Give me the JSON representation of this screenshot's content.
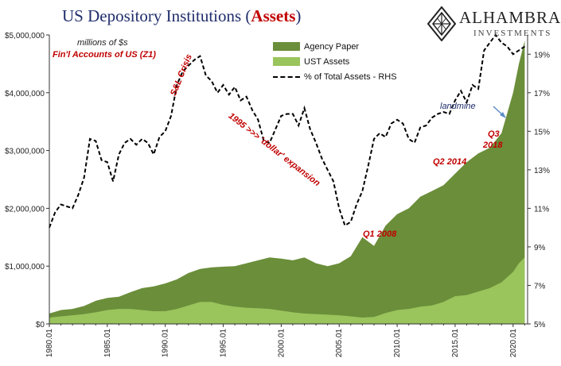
{
  "title": {
    "prefix": "US Depository Institutions (",
    "highlight": "Assets",
    "suffix": ")"
  },
  "logo": {
    "name": "ALHAMBRA",
    "sub": "INVESTMENTS"
  },
  "notes": {
    "units": "millions of $s",
    "source": "Fin'l Accounts of US (Z1)"
  },
  "annotations": [
    {
      "id": "sl-crisis",
      "text": "S&L Crisis",
      "style": "red"
    },
    {
      "id": "dollar-expansion",
      "text": "1995 >>> 'dollar' expansion",
      "style": "red"
    },
    {
      "id": "q1-2008",
      "text": "Q1 2008",
      "style": "red"
    },
    {
      "id": "q2-2014",
      "text": "Q2 2014",
      "style": "red"
    },
    {
      "id": "q3",
      "text": "Q3",
      "style": "red"
    },
    {
      "id": "y2018",
      "text": "2018",
      "style": "red"
    },
    {
      "id": "landmine",
      "text": "landmine",
      "style": "dark"
    }
  ],
  "colors": {
    "agency": "#6b8e3a",
    "ust": "#9ac45c",
    "pct": "#000000",
    "axis": "#333333"
  },
  "chart_data": {
    "type": "area",
    "x_tick_labels": [
      "1980.01",
      "1985.01",
      "1990.01",
      "1995.01",
      "2000.01",
      "2005.01",
      "2010.01",
      "2015.01",
      "2020.01"
    ],
    "x_ticks": [
      1980,
      1985,
      1990,
      1995,
      2000,
      2005,
      2010,
      2015,
      2020
    ],
    "xlim": [
      1980,
      2021.25
    ],
    "y_left_tick_labels": [
      "$0",
      "$1,000,000",
      "$2,000,000",
      "$3,000,000",
      "$4,000,000",
      "$5,000,000"
    ],
    "y_left_ticks": [
      0,
      1000000,
      2000000,
      3000000,
      4000000,
      5000000
    ],
    "ylim_left": [
      0,
      5000000
    ],
    "y_right_tick_labels": [
      "5%",
      "7%",
      "9%",
      "11%",
      "13%",
      "15%",
      "17%",
      "19%"
    ],
    "y_right_ticks": [
      5,
      7,
      9,
      11,
      13,
      15,
      17,
      19
    ],
    "ylim_right": [
      5,
      20
    ],
    "series": [
      {
        "name": "Agency Paper",
        "kind": "area",
        "stack": "total",
        "x": [
          1980,
          1981,
          1982,
          1983,
          1984,
          1985,
          1986,
          1987,
          1988,
          1989,
          1990,
          1991,
          1992,
          1993,
          1994,
          1995,
          1996,
          1997,
          1998,
          1999,
          2000,
          2001,
          2002,
          2003,
          2004,
          2005,
          2006,
          2007,
          2008,
          2009,
          2010,
          2011,
          2012,
          2013,
          2014,
          2015,
          2016,
          2017,
          2018,
          2019,
          2020,
          2020.5,
          2021
        ],
        "values": [
          180000,
          240000,
          260000,
          310000,
          400000,
          450000,
          470000,
          550000,
          620000,
          650000,
          700000,
          770000,
          880000,
          950000,
          980000,
          990000,
          1000000,
          1050000,
          1100000,
          1150000,
          1130000,
          1100000,
          1150000,
          1050000,
          1000000,
          1050000,
          1170000,
          1500000,
          1350000,
          1700000,
          1900000,
          2000000,
          2200000,
          2300000,
          2400000,
          2600000,
          2800000,
          2950000,
          3050000,
          3300000,
          4000000,
          4500000,
          4900000
        ]
      },
      {
        "name": "UST Assets",
        "kind": "area",
        "stack": "inner",
        "x": [
          1980,
          1981,
          1982,
          1983,
          1984,
          1985,
          1986,
          1987,
          1988,
          1989,
          1990,
          1991,
          1992,
          1993,
          1994,
          1995,
          1996,
          1997,
          1998,
          1999,
          2000,
          2001,
          2002,
          2003,
          2004,
          2005,
          2006,
          2007,
          2008,
          2009,
          2010,
          2011,
          2012,
          2013,
          2014,
          2015,
          2016,
          2017,
          2018,
          2019,
          2020,
          2020.5,
          2021
        ],
        "values": [
          110000,
          130000,
          150000,
          170000,
          200000,
          240000,
          260000,
          260000,
          240000,
          220000,
          220000,
          260000,
          320000,
          380000,
          380000,
          330000,
          300000,
          280000,
          270000,
          260000,
          230000,
          200000,
          180000,
          170000,
          160000,
          150000,
          130000,
          110000,
          120000,
          190000,
          240000,
          260000,
          300000,
          320000,
          380000,
          480000,
          500000,
          560000,
          620000,
          720000,
          900000,
          1050000,
          1150000
        ]
      },
      {
        "name": "% of Total Assets - RHS",
        "kind": "line",
        "axis": "right",
        "x": [
          1980,
          1980.5,
          1981,
          1982,
          1982.5,
          1983,
          1983.5,
          1984,
          1984.5,
          1985,
          1985.5,
          1986,
          1986.5,
          1987,
          1987.5,
          1988,
          1988.5,
          1989,
          1989.5,
          1990,
          1990.5,
          1991,
          1991.5,
          1992,
          1992.5,
          1993,
          1993.5,
          1994,
          1994.5,
          1995,
          1995.5,
          1996,
          1996.5,
          1997,
          1997.5,
          1998,
          1998.5,
          1999,
          1999.5,
          2000,
          2000.5,
          2001,
          2001.5,
          2002,
          2002.5,
          2003,
          2003.5,
          2004,
          2004.5,
          2005,
          2005.5,
          2006,
          2006.5,
          2007,
          2007.5,
          2008,
          2008.5,
          2009,
          2009.5,
          2010,
          2010.5,
          2011,
          2011.5,
          2012,
          2012.5,
          2013,
          2013.5,
          2014,
          2014.5,
          2015,
          2015.5,
          2016,
          2016.5,
          2017,
          2017.5,
          2018,
          2018.5,
          2019,
          2019.5,
          2020,
          2020.5,
          2021
        ],
        "values": [
          10.0,
          10.8,
          11.2,
          11.0,
          11.7,
          12.6,
          14.6,
          14.5,
          13.5,
          13.4,
          12.4,
          13.8,
          14.4,
          14.6,
          14.3,
          14.6,
          14.4,
          13.8,
          14.7,
          15.0,
          15.8,
          17.4,
          18.1,
          18.4,
          18.7,
          18.9,
          17.9,
          17.6,
          17.0,
          17.4,
          16.9,
          17.3,
          16.6,
          16.8,
          16.1,
          15.6,
          14.5,
          14.4,
          15.1,
          15.8,
          15.9,
          15.9,
          15.3,
          16.2,
          15.1,
          14.4,
          13.6,
          13.0,
          12.4,
          11.0,
          10.1,
          10.3,
          11.2,
          11.9,
          13.2,
          14.6,
          14.9,
          14.7,
          15.4,
          15.6,
          15.4,
          14.6,
          14.4,
          15.2,
          15.3,
          15.7,
          15.9,
          16.0,
          15.9,
          16.6,
          17.1,
          16.5,
          17.4,
          17.2,
          19.2,
          19.6,
          20.0,
          19.6,
          19.4,
          19.0,
          19.2,
          19.4
        ]
      }
    ],
    "legend_position": "top-center",
    "grid": false
  }
}
